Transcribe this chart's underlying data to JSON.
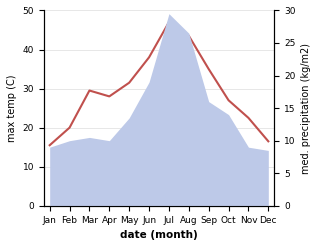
{
  "months": [
    "Jan",
    "Feb",
    "Mar",
    "Apr",
    "May",
    "Jun",
    "Jul",
    "Aug",
    "Sep",
    "Oct",
    "Nov",
    "Dec"
  ],
  "temp_max": [
    15.5,
    20.0,
    29.5,
    28.0,
    31.5,
    38.0,
    47.0,
    43.5,
    35.0,
    27.0,
    22.5,
    16.5
  ],
  "precip": [
    9.0,
    10.0,
    10.5,
    10.0,
    13.5,
    19.0,
    29.5,
    26.5,
    16.0,
    14.0,
    9.0,
    8.5
  ],
  "temp_color": "#c0504d",
  "precip_fill_color": "#bdc9e8",
  "ylim_left": [
    0,
    50
  ],
  "ylim_right": [
    0,
    30
  ],
  "xlabel": "date (month)",
  "ylabel_left": "max temp (C)",
  "ylabel_right": "med. precipitation (kg/m2)",
  "bg_color": "#ffffff",
  "left_yticks": [
    0,
    10,
    20,
    30,
    40,
    50
  ],
  "right_yticks": [
    0,
    5,
    10,
    15,
    20,
    25,
    30
  ]
}
